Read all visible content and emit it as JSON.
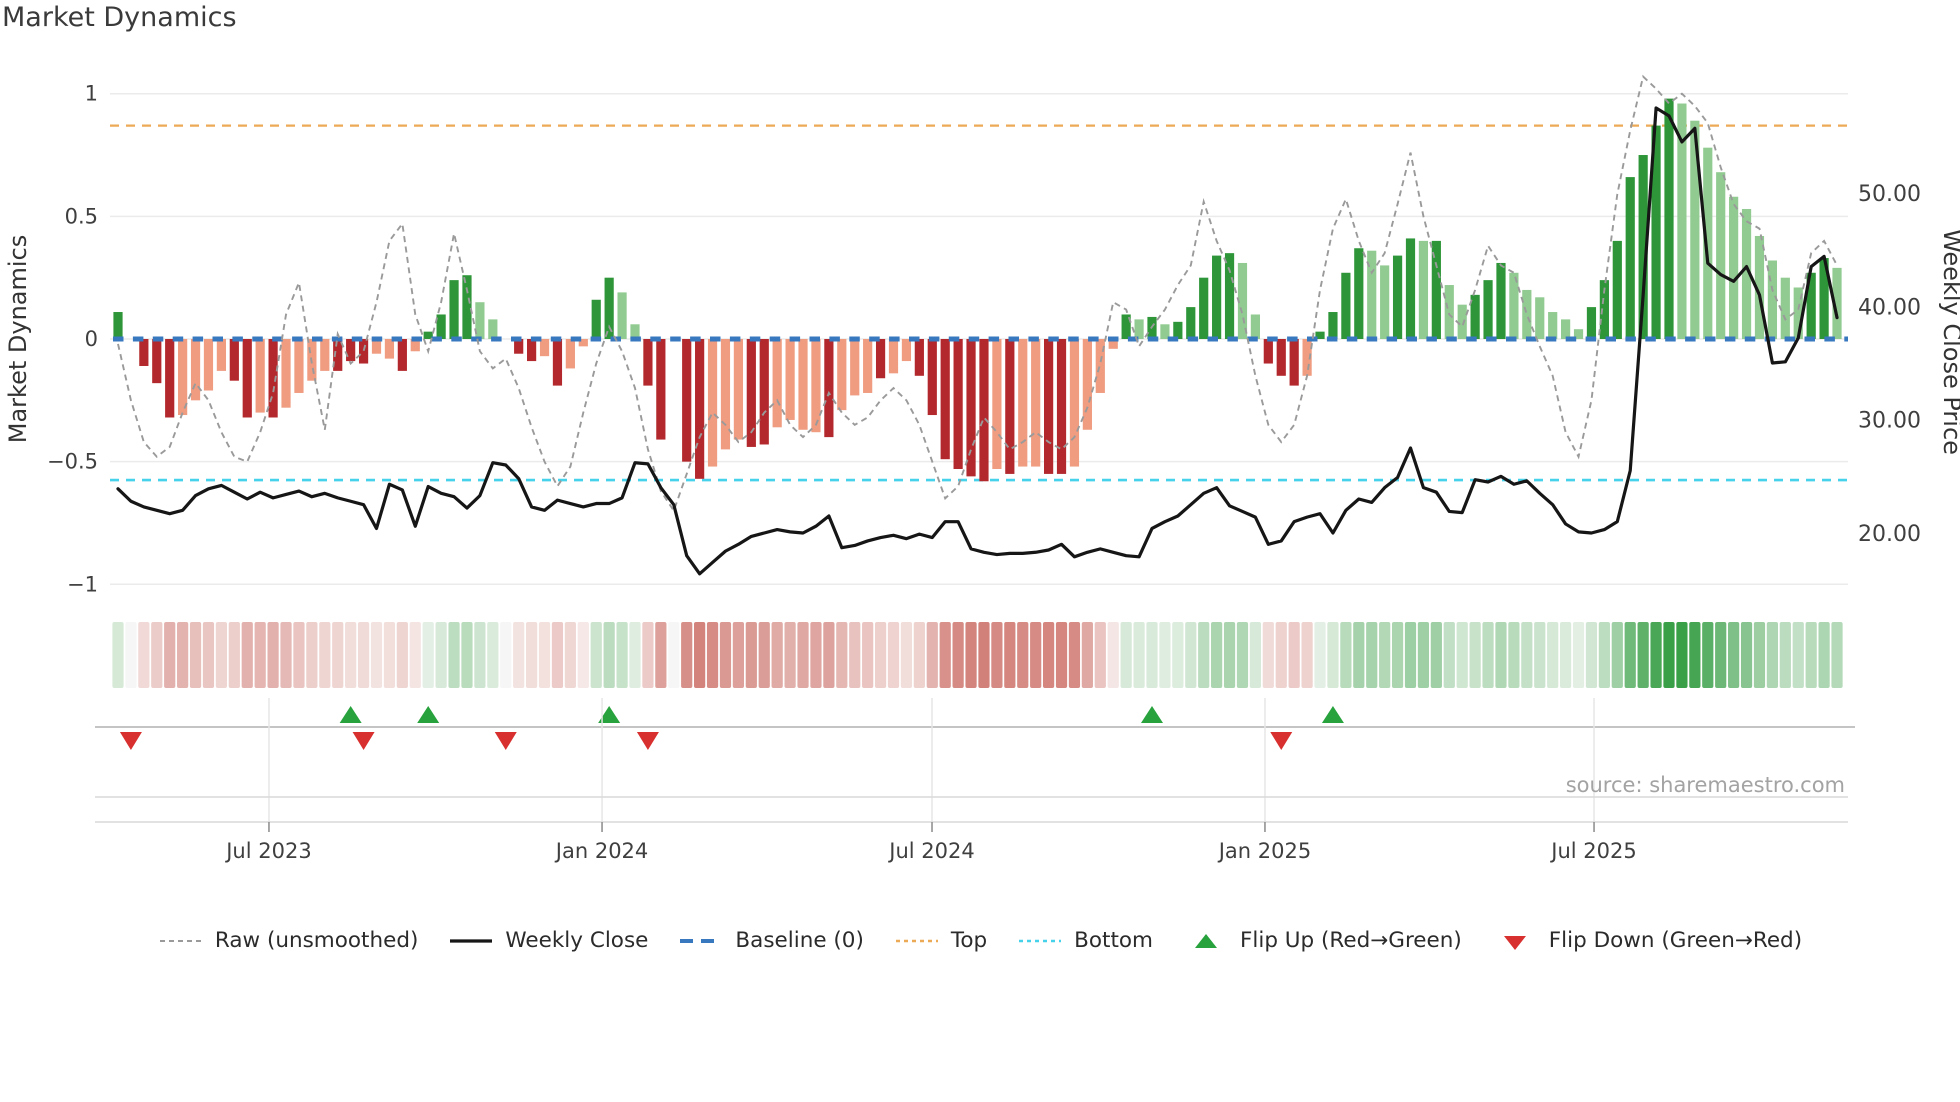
{
  "title": "Market Dynamics",
  "source_note": "source: sharemaestro.com",
  "axes": {
    "left_label": "Market Dynamics",
    "right_label": "Weekly Close Price",
    "left_ticks": [
      {
        "label": "1",
        "v": 1
      },
      {
        "label": "0.5",
        "v": 0.5
      },
      {
        "label": "0",
        "v": 0
      },
      {
        "label": "−0.5",
        "v": -0.5
      },
      {
        "label": "−1",
        "v": -1
      }
    ],
    "right_ticks": [
      {
        "label": "50.00",
        "p": 50
      },
      {
        "label": "40.00",
        "p": 40
      },
      {
        "label": "30.00",
        "p": 30
      },
      {
        "label": "20.00",
        "p": 20
      }
    ],
    "x_ticks": [
      {
        "label": "Jul 2023",
        "i": 11.68
      },
      {
        "label": "Jan 2024",
        "i": 37.45
      },
      {
        "label": "Jul 2024",
        "i": 62.98
      },
      {
        "label": "Jan 2025",
        "i": 88.74
      },
      {
        "label": "Jul 2025",
        "i": 114.2
      }
    ]
  },
  "colors": {
    "bar_dark_red": "#b3282c",
    "bar_salmon": "#ef9c80",
    "bar_dark_green": "#2e9639",
    "bar_light_green": "#92cb92",
    "baseline": "#3778bf",
    "top_line": "#edaa56",
    "bottom_line": "#45d2ea",
    "raw_line": "#9a9a9a",
    "price_line": "#161616",
    "flip_up": "#27a23d",
    "flip_down": "#d8302f",
    "grid": "#ebebeb",
    "axis_line": "#d9d9d9",
    "marker_rule": "#c4c4c4"
  },
  "legend": {
    "items": [
      {
        "label": "Raw (unsmoothed)",
        "swatch": "dash-gray"
      },
      {
        "label": "Weekly Close",
        "swatch": "solid-black"
      },
      {
        "label": "Baseline (0)",
        "swatch": "dash-blue"
      },
      {
        "label": "Top",
        "swatch": "dot-orange"
      },
      {
        "label": "Bottom",
        "swatch": "dot-cyan"
      },
      {
        "label": "Flip Up (Red→Green)",
        "swatch": "tri-up"
      },
      {
        "label": "Flip Down (Green→Red)",
        "swatch": "tri-down"
      }
    ]
  },
  "chart_data": {
    "type": "bar",
    "description": "Weekly market-dynamics oscillator bars (left axis, -1..1) with raw unsmoothed dashed line, weekly close price line (right axis), top/bottom threshold lines, baseline dashes, a color heat strip and flip up/down markers",
    "n_weeks": 134,
    "ylim_left": [
      -1,
      1.08
    ],
    "top_line": 0.87,
    "bottom_line": -0.575,
    "baseline": 0,
    "bar_values": [
      0.11,
      0.0,
      -0.11,
      -0.18,
      -0.32,
      -0.31,
      -0.25,
      -0.21,
      -0.13,
      -0.17,
      -0.32,
      -0.3,
      -0.32,
      -0.28,
      -0.22,
      -0.17,
      -0.13,
      -0.13,
      -0.09,
      -0.1,
      -0.06,
      -0.08,
      -0.13,
      -0.05,
      0.03,
      0.1,
      0.24,
      0.26,
      0.15,
      0.08,
      0.0,
      -0.06,
      -0.09,
      -0.07,
      -0.19,
      -0.12,
      -0.03,
      0.16,
      0.25,
      0.19,
      0.06,
      -0.19,
      -0.41,
      0.0,
      -0.5,
      -0.57,
      -0.52,
      -0.45,
      -0.41,
      -0.44,
      -0.43,
      -0.36,
      -0.33,
      -0.37,
      -0.38,
      -0.4,
      -0.29,
      -0.23,
      -0.22,
      -0.16,
      -0.14,
      -0.09,
      -0.15,
      -0.31,
      -0.49,
      -0.53,
      -0.56,
      -0.58,
      -0.53,
      -0.55,
      -0.52,
      -0.52,
      -0.55,
      -0.55,
      -0.52,
      -0.37,
      -0.22,
      -0.04,
      0.1,
      0.08,
      0.09,
      0.06,
      0.07,
      0.13,
      0.25,
      0.34,
      0.35,
      0.31,
      0.1,
      -0.1,
      -0.15,
      -0.19,
      -0.15,
      0.03,
      0.11,
      0.27,
      0.37,
      0.36,
      0.3,
      0.34,
      0.41,
      0.4,
      0.4,
      0.22,
      0.14,
      0.18,
      0.24,
      0.31,
      0.27,
      0.2,
      0.17,
      0.11,
      0.08,
      0.04,
      0.13,
      0.24,
      0.4,
      0.66,
      0.75,
      0.87,
      0.98,
      0.96,
      0.89,
      0.78,
      0.68,
      0.58,
      0.53,
      0.42,
      0.32,
      0.25,
      0.21,
      0.27,
      0.33,
      0.29
    ],
    "bar_color_class": [
      "G",
      "",
      "D",
      "D",
      "D",
      "S",
      "S",
      "S",
      "S",
      "D",
      "D",
      "S",
      "D",
      "S",
      "S",
      "S",
      "S",
      "D",
      "D",
      "D",
      "S",
      "S",
      "D",
      "S",
      "G",
      "G",
      "G",
      "G",
      "L",
      "L",
      "",
      "D",
      "D",
      "S",
      "D",
      "S",
      "S",
      "G",
      "G",
      "L",
      "L",
      "D",
      "D",
      "",
      "D",
      "D",
      "S",
      "S",
      "S",
      "D",
      "D",
      "S",
      "S",
      "S",
      "S",
      "D",
      "S",
      "S",
      "S",
      "D",
      "S",
      "S",
      "D",
      "D",
      "D",
      "D",
      "D",
      "D",
      "S",
      "D",
      "S",
      "S",
      "D",
      "D",
      "S",
      "S",
      "S",
      "S",
      "G",
      "L",
      "G",
      "L",
      "G",
      "G",
      "G",
      "G",
      "G",
      "L",
      "L",
      "D",
      "D",
      "D",
      "S",
      "G",
      "G",
      "G",
      "G",
      "L",
      "L",
      "G",
      "G",
      "L",
      "G",
      "L",
      "L",
      "G",
      "G",
      "G",
      "L",
      "L",
      "L",
      "L",
      "L",
      "L",
      "G",
      "G",
      "G",
      "G",
      "G",
      "G",
      "G",
      "L",
      "L",
      "L",
      "L",
      "L",
      "L",
      "L",
      "L",
      "L",
      "L",
      "G",
      "G",
      "L"
    ],
    "raw_values": [
      -0.02,
      -0.25,
      -0.42,
      -0.48,
      -0.44,
      -0.3,
      -0.18,
      -0.25,
      -0.38,
      -0.48,
      -0.5,
      -0.38,
      -0.22,
      0.1,
      0.23,
      -0.1,
      -0.37,
      0.02,
      -0.1,
      -0.05,
      0.15,
      0.4,
      0.47,
      0.1,
      -0.05,
      0.15,
      0.43,
      0.2,
      -0.05,
      -0.12,
      -0.08,
      -0.2,
      -0.36,
      -0.5,
      -0.6,
      -0.52,
      -0.3,
      -0.1,
      0.05,
      -0.05,
      -0.2,
      -0.45,
      -0.62,
      -0.7,
      -0.55,
      -0.4,
      -0.3,
      -0.35,
      -0.42,
      -0.38,
      -0.3,
      -0.25,
      -0.35,
      -0.4,
      -0.35,
      -0.22,
      -0.3,
      -0.35,
      -0.32,
      -0.25,
      -0.2,
      -0.25,
      -0.35,
      -0.5,
      -0.65,
      -0.6,
      -0.45,
      -0.32,
      -0.38,
      -0.45,
      -0.42,
      -0.38,
      -0.42,
      -0.45,
      -0.4,
      -0.28,
      -0.1,
      0.15,
      0.12,
      -0.03,
      0.05,
      0.12,
      0.22,
      0.3,
      0.56,
      0.4,
      0.28,
      0.1,
      -0.15,
      -0.35,
      -0.42,
      -0.35,
      -0.15,
      0.2,
      0.45,
      0.57,
      0.4,
      0.27,
      0.35,
      0.55,
      0.76,
      0.5,
      0.3,
      0.1,
      0.05,
      0.2,
      0.38,
      0.3,
      0.27,
      0.1,
      -0.03,
      -0.15,
      -0.38,
      -0.48,
      -0.25,
      0.2,
      0.59,
      0.85,
      1.07,
      1.02,
      0.96,
      1.0,
      0.95,
      0.88,
      0.7,
      0.55,
      0.48,
      0.45,
      0.2,
      0.08,
      0.12,
      0.35,
      0.4,
      0.3
    ],
    "price_values": [
      23.9,
      22.8,
      22.3,
      22.0,
      21.7,
      22.0,
      23.3,
      23.9,
      24.2,
      23.6,
      23.0,
      23.6,
      23.1,
      23.4,
      23.7,
      23.2,
      23.5,
      23.1,
      22.8,
      22.5,
      20.4,
      24.3,
      23.8,
      20.6,
      24.1,
      23.5,
      23.2,
      22.2,
      23.3,
      26.2,
      26.0,
      24.8,
      22.3,
      22.0,
      22.9,
      22.6,
      22.3,
      22.6,
      22.6,
      23.1,
      26.2,
      26.1,
      24.0,
      22.5,
      18.0,
      16.4,
      17.4,
      18.4,
      19.0,
      19.7,
      20.0,
      20.3,
      20.1,
      20.0,
      20.6,
      21.5,
      18.7,
      18.9,
      19.3,
      19.6,
      19.8,
      19.5,
      19.9,
      19.6,
      21.0,
      21.0,
      18.6,
      18.3,
      18.1,
      18.2,
      18.2,
      18.3,
      18.5,
      19.0,
      17.9,
      18.3,
      18.6,
      18.3,
      18.0,
      17.9,
      20.4,
      21.0,
      21.5,
      22.5,
      23.5,
      24.0,
      22.4,
      21.9,
      21.4,
      19.0,
      19.3,
      21.0,
      21.4,
      21.7,
      20.0,
      22.0,
      23.0,
      22.7,
      24.0,
      24.9,
      27.5,
      24.0,
      23.6,
      21.9,
      21.8,
      24.7,
      24.5,
      25.0,
      24.3,
      24.6,
      23.5,
      22.5,
      20.8,
      20.1,
      20.0,
      20.3,
      21.0,
      25.5,
      41.0,
      57.5,
      56.8,
      54.5,
      55.7,
      43.8,
      42.8,
      42.2,
      43.5,
      41.0,
      35.0,
      35.1,
      37.2,
      43.5,
      44.4,
      39.0
    ],
    "flip_up_weeks": [
      18,
      24,
      38,
      80,
      94
    ],
    "flip_down_weeks": [
      1,
      19,
      30,
      41,
      90
    ]
  }
}
